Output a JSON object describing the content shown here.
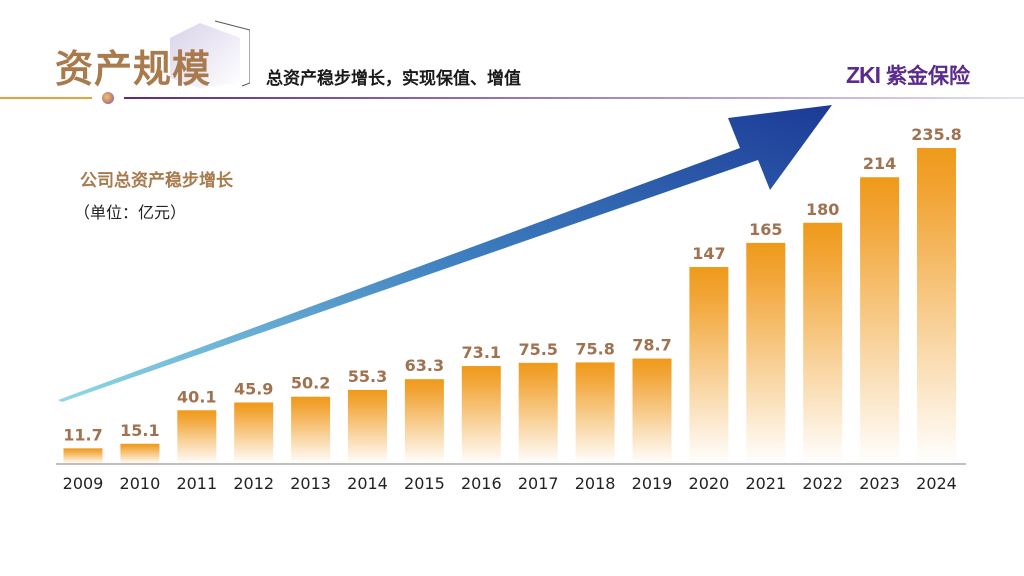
{
  "header": {
    "title": "资产规模",
    "subtitle": "总资产稳步增长，实现保值、增值",
    "logo_mark": "ZKI",
    "logo_name": "紫金保险"
  },
  "chart_data": {
    "type": "bar",
    "title": "公司总资产稳步增长",
    "unit": "（单位：亿元）",
    "categories": [
      "2009",
      "2010",
      "2011",
      "2012",
      "2013",
      "2014",
      "2015",
      "2016",
      "2017",
      "2018",
      "2019",
      "2020",
      "2021",
      "2022",
      "2023",
      "2024"
    ],
    "values": [
      11.7,
      15.1,
      40.1,
      45.9,
      50.2,
      55.3,
      63.3,
      73.1,
      75.5,
      75.8,
      78.7,
      147,
      165,
      180,
      214,
      235.8
    ],
    "value_labels": [
      "11.7",
      "15.1",
      "40.1",
      "45.9",
      "50.2",
      "55.3",
      "63.3",
      "73.1",
      "75.5",
      "75.8",
      "78.7",
      "147",
      "165",
      "180",
      "214",
      "235.8"
    ],
    "xlabel": "",
    "ylabel": "",
    "ylim": [
      0,
      240
    ],
    "grid": false,
    "annotation": "upward-trend-arrow",
    "colors": {
      "bar_top": "#ee9a1a",
      "bar_bottom": "#ffffff",
      "value_label": "#a07250",
      "arrow_start": "#7fd0e0",
      "arrow_end": "#1f3f9a"
    }
  }
}
